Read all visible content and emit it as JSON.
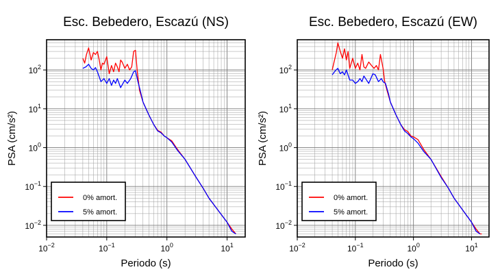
{
  "chart_data": [
    {
      "type": "line",
      "title": "Esc. Bebedero, Escazú (NS)",
      "xlabel": "Periodo (s)",
      "ylabel": "PSA (cm/s²)",
      "xscale": "log",
      "yscale": "log",
      "xlim": [
        0.01,
        20
      ],
      "ylim": [
        0.005,
        600
      ],
      "grid": true,
      "legend_position": "bottom-left",
      "x_ticks": [
        {
          "base": "10",
          "exp": "−2"
        },
        {
          "base": "10",
          "exp": "−1"
        },
        {
          "base": "10",
          "exp": "0"
        },
        {
          "base": "10",
          "exp": "1"
        }
      ],
      "y_ticks": [
        {
          "base": "10",
          "exp": "−2"
        },
        {
          "base": "10",
          "exp": "−1"
        },
        {
          "base": "10",
          "exp": "0"
        },
        {
          "base": "10",
          "exp": "1"
        },
        {
          "base": "10",
          "exp": "2"
        }
      ],
      "series": [
        {
          "name": "0% amort.",
          "color": "#ff0000",
          "x": [
            0.04,
            0.043,
            0.046,
            0.05,
            0.055,
            0.06,
            0.065,
            0.07,
            0.075,
            0.08,
            0.085,
            0.09,
            0.1,
            0.11,
            0.12,
            0.13,
            0.14,
            0.15,
            0.16,
            0.17,
            0.18,
            0.2,
            0.22,
            0.24,
            0.26,
            0.28,
            0.3,
            0.32,
            0.35,
            0.4,
            0.45,
            0.5,
            0.6,
            0.7,
            0.8,
            0.9,
            1.0,
            1.2,
            1.5,
            2,
            3,
            4,
            5,
            7,
            10,
            12,
            14
          ],
          "y": [
            200,
            150,
            250,
            370,
            180,
            280,
            250,
            300,
            180,
            100,
            150,
            140,
            220,
            80,
            130,
            90,
            150,
            120,
            90,
            180,
            160,
            110,
            140,
            100,
            120,
            300,
            320,
            100,
            30,
            15,
            10,
            7,
            4,
            2.8,
            2.5,
            2.0,
            1.8,
            1.5,
            0.9,
            0.5,
            0.18,
            0.09,
            0.05,
            0.025,
            0.012,
            0.008,
            0.006
          ]
        },
        {
          "name": "5% amort.",
          "color": "#0000ff",
          "x": [
            0.04,
            0.045,
            0.05,
            0.055,
            0.06,
            0.065,
            0.07,
            0.08,
            0.09,
            0.1,
            0.11,
            0.12,
            0.13,
            0.14,
            0.15,
            0.17,
            0.2,
            0.22,
            0.25,
            0.28,
            0.3,
            0.33,
            0.37,
            0.4,
            0.45,
            0.5,
            0.6,
            0.7,
            0.8,
            0.9,
            1.0,
            1.2,
            1.5,
            2,
            3,
            4,
            5,
            7,
            10,
            12,
            14
          ],
          "y": [
            110,
            120,
            140,
            110,
            100,
            115,
            90,
            50,
            60,
            45,
            60,
            40,
            55,
            45,
            60,
            35,
            55,
            45,
            60,
            90,
            95,
            50,
            25,
            15,
            10,
            7,
            4,
            2.7,
            2.4,
            2.0,
            1.8,
            1.4,
            0.85,
            0.5,
            0.18,
            0.09,
            0.05,
            0.025,
            0.012,
            0.007,
            0.006
          ]
        }
      ]
    },
    {
      "type": "line",
      "title": "Esc. Bebedero, Escazú (EW)",
      "xlabel": "Periodo (s)",
      "ylabel": "PSA (cm/s²)",
      "xscale": "log",
      "yscale": "log",
      "xlim": [
        0.01,
        20
      ],
      "ylim": [
        0.005,
        600
      ],
      "grid": true,
      "legend_position": "bottom-left",
      "x_ticks": [
        {
          "base": "10",
          "exp": "−2"
        },
        {
          "base": "10",
          "exp": "−1"
        },
        {
          "base": "10",
          "exp": "0"
        },
        {
          "base": "10",
          "exp": "1"
        }
      ],
      "y_ticks": [
        {
          "base": "10",
          "exp": "−2"
        },
        {
          "base": "10",
          "exp": "−1"
        },
        {
          "base": "10",
          "exp": "0"
        },
        {
          "base": "10",
          "exp": "1"
        },
        {
          "base": "10",
          "exp": "2"
        }
      ],
      "series": [
        {
          "name": "0% amort.",
          "color": "#ff0000",
          "x": [
            0.04,
            0.043,
            0.047,
            0.05,
            0.055,
            0.06,
            0.065,
            0.07,
            0.075,
            0.08,
            0.09,
            0.1,
            0.11,
            0.12,
            0.13,
            0.14,
            0.15,
            0.17,
            0.19,
            0.21,
            0.23,
            0.25,
            0.27,
            0.3,
            0.32,
            0.35,
            0.4,
            0.45,
            0.5,
            0.6,
            0.7,
            0.8,
            0.9,
            1.0,
            1.2,
            1.5,
            2,
            3,
            4,
            5,
            7,
            10,
            12,
            14,
            15
          ],
          "y": [
            100,
            160,
            280,
            500,
            300,
            200,
            350,
            180,
            300,
            110,
            200,
            110,
            150,
            100,
            250,
            120,
            110,
            160,
            130,
            110,
            130,
            100,
            250,
            110,
            50,
            30,
            15,
            10,
            7,
            4,
            2.9,
            2.6,
            2.0,
            1.9,
            1.6,
            0.9,
            0.5,
            0.18,
            0.09,
            0.05,
            0.025,
            0.012,
            0.008,
            0.006,
            0.006
          ]
        },
        {
          "name": "5% amort.",
          "color": "#0000ff",
          "x": [
            0.04,
            0.045,
            0.05,
            0.055,
            0.06,
            0.065,
            0.07,
            0.08,
            0.09,
            0.1,
            0.11,
            0.12,
            0.13,
            0.14,
            0.15,
            0.17,
            0.2,
            0.22,
            0.25,
            0.28,
            0.3,
            0.33,
            0.37,
            0.4,
            0.45,
            0.5,
            0.6,
            0.7,
            0.8,
            0.9,
            1.0,
            1.2,
            1.5,
            2,
            3,
            4,
            5,
            7,
            10,
            12,
            14
          ],
          "y": [
            75,
            95,
            110,
            80,
            90,
            75,
            100,
            55,
            55,
            45,
            50,
            60,
            50,
            70,
            60,
            45,
            80,
            75,
            50,
            60,
            50,
            45,
            25,
            15,
            10,
            7,
            4,
            2.7,
            2.3,
            1.9,
            1.7,
            1.3,
            0.8,
            0.5,
            0.17,
            0.09,
            0.05,
            0.025,
            0.012,
            0.007,
            0.006
          ]
        }
      ]
    }
  ]
}
